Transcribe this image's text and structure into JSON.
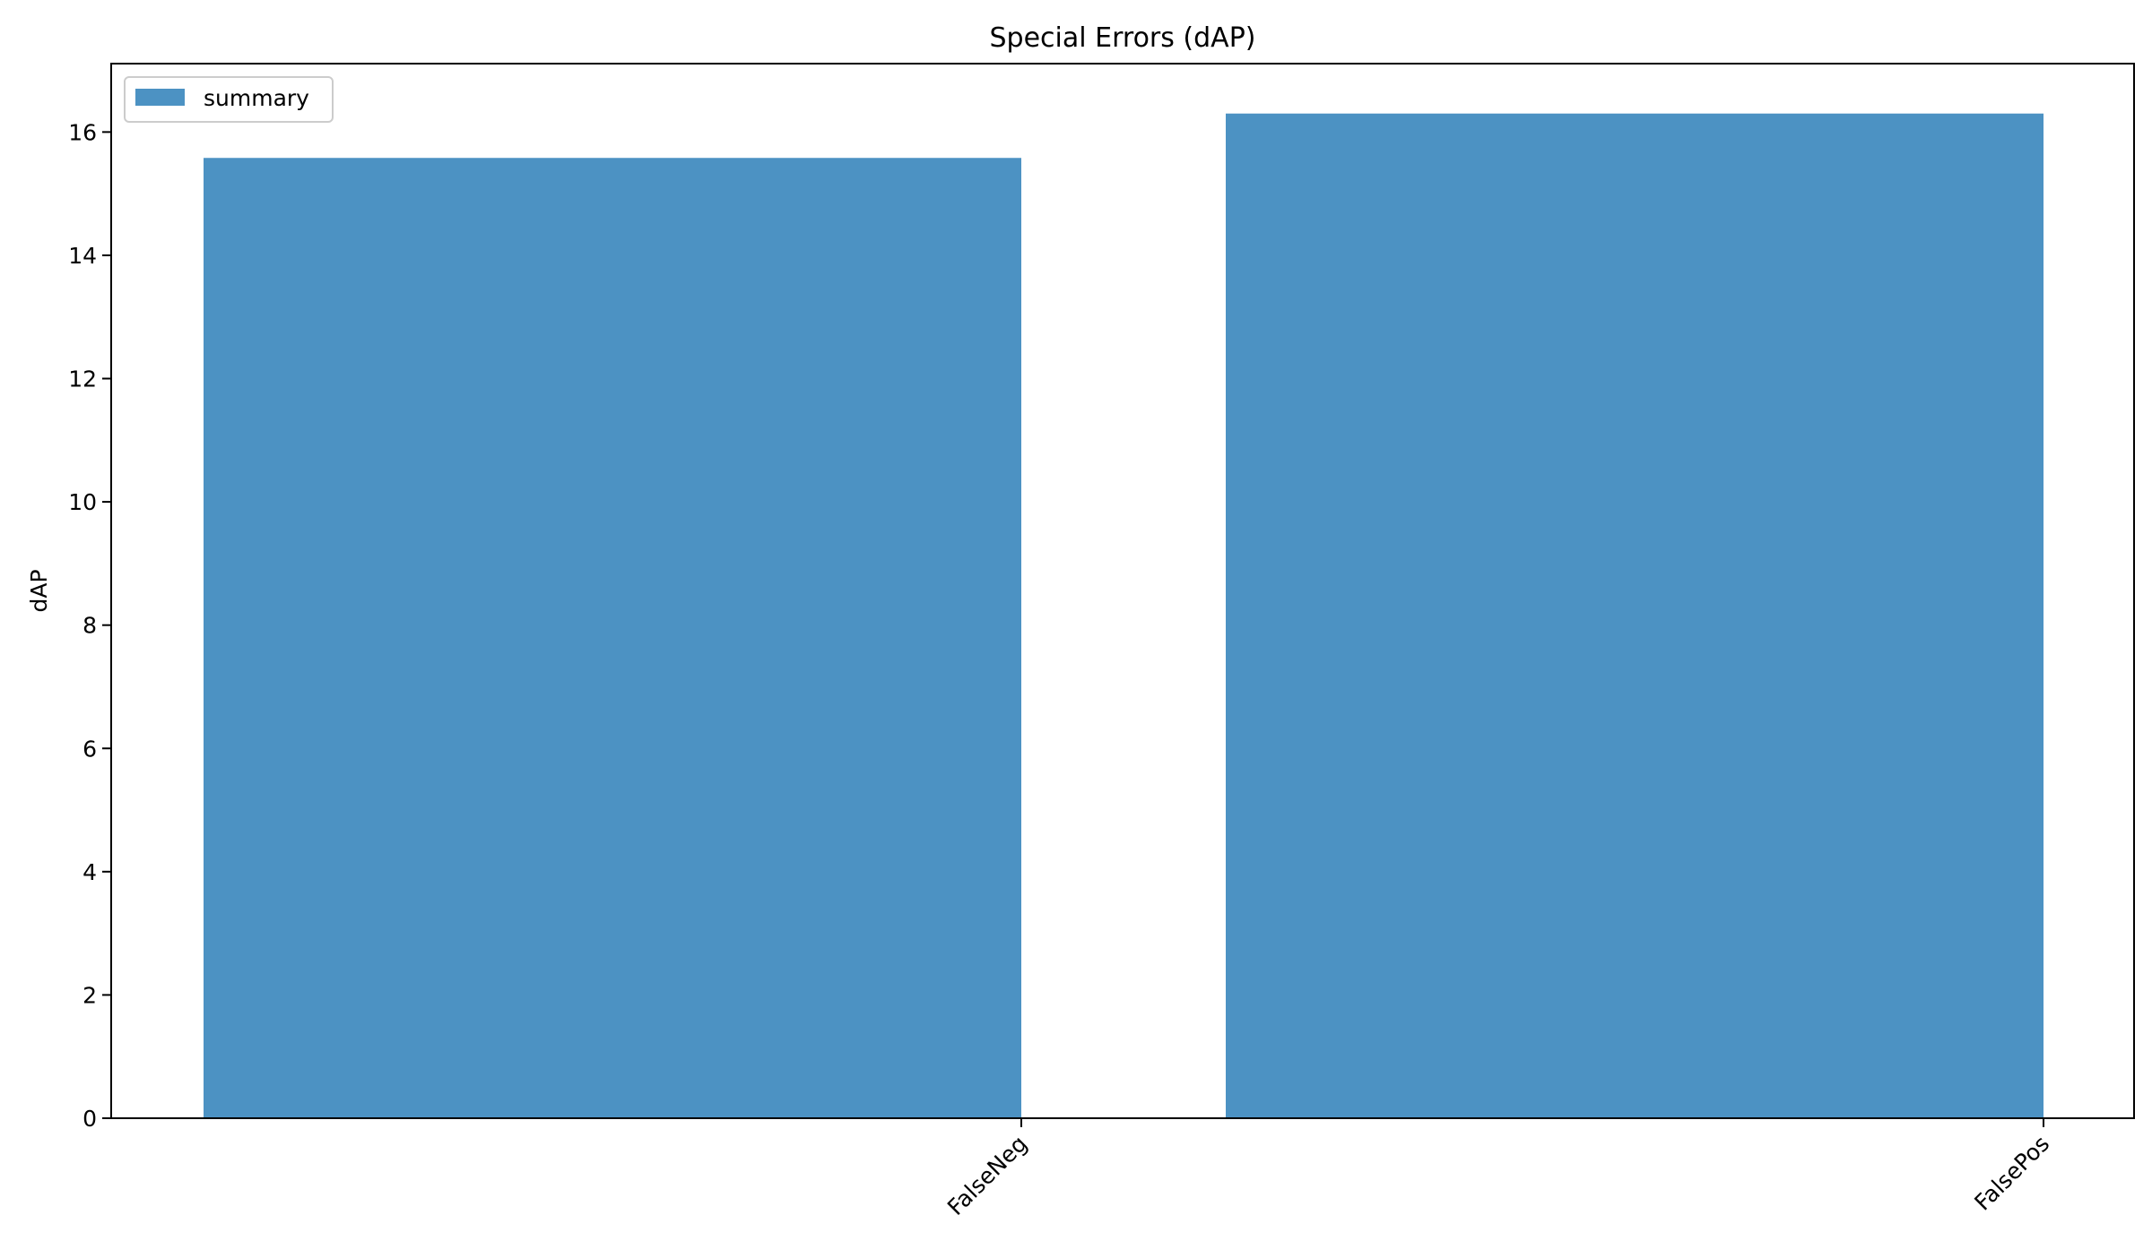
{
  "chart_data": {
    "type": "bar",
    "title": "Special Errors (dAP)",
    "xlabel": "",
    "ylabel": "dAP",
    "categories": [
      "FalseNeg",
      "FalsePos"
    ],
    "series": [
      {
        "name": "summary",
        "values": [
          15.58,
          16.3
        ]
      }
    ],
    "ylim": [
      0,
      17.11
    ],
    "yticks": [
      0,
      2,
      4,
      6,
      8,
      10,
      12,
      14,
      16
    ],
    "ytick_labels": [
      "0",
      "2",
      "4",
      "6",
      "8",
      "10",
      "12",
      "14",
      "16"
    ],
    "grid": false,
    "legend_position": "upper left",
    "colors": {
      "bar": "#4c92c3",
      "axis": "#000000",
      "legend_border": "#cccccc"
    }
  }
}
